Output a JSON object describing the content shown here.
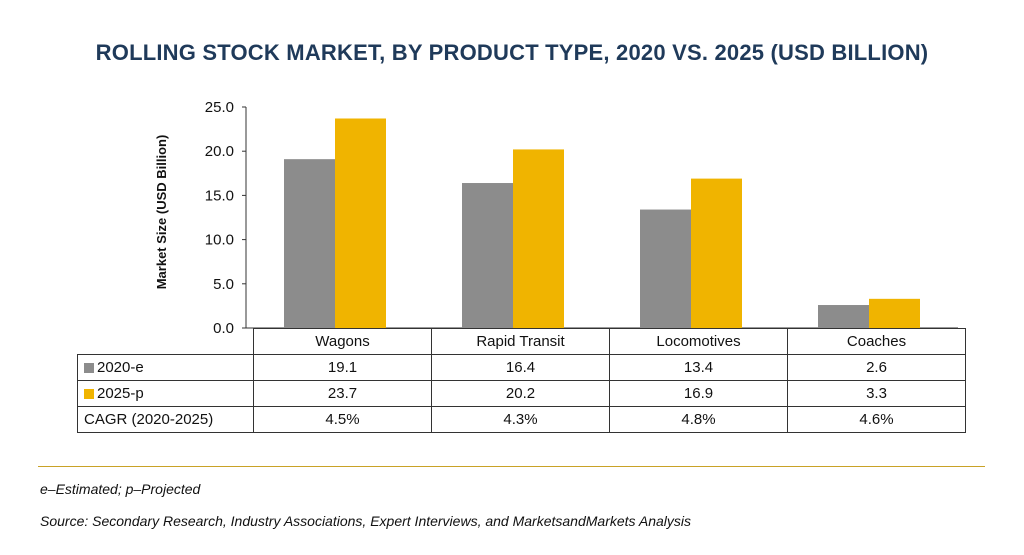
{
  "chart_data": {
    "type": "bar",
    "title": "ROLLING STOCK MARKET, BY PRODUCT TYPE, 2020 VS. 2025 (USD BILLION)",
    "ylabel": "Market Size (USD Billion)",
    "xlabel": "",
    "ylim": [
      0,
      25
    ],
    "yticks": [
      "25.0",
      "20.0",
      "15.0",
      "10.0",
      "5.0",
      "0.0"
    ],
    "categories": [
      "Wagons",
      "Rapid Transit",
      "Locomotives",
      "Coaches"
    ],
    "series": [
      {
        "name": "2020-e",
        "values": [
          19.1,
          16.4,
          13.4,
          2.6
        ],
        "labels": [
          "19.1",
          "16.4",
          "13.4",
          "2.6"
        ],
        "color": "#8c8c8c"
      },
      {
        "name": "2025-p",
        "values": [
          23.7,
          20.2,
          16.9,
          3.3
        ],
        "labels": [
          "23.7",
          "20.2",
          "16.9",
          "3.3"
        ],
        "color": "#f0b400"
      }
    ],
    "cagr": {
      "label": "CAGR (2020-2025)",
      "values": [
        "4.5%",
        "4.3%",
        "4.8%",
        "4.6%"
      ]
    },
    "grid": false,
    "legend": "table"
  },
  "footer": {
    "rule_color": "#c9a227",
    "note": "e–Estimated; p–Projected",
    "source": "Source: Secondary Research, Industry Associations, Expert Interviews, and MarketsandMarkets Analysis"
  }
}
